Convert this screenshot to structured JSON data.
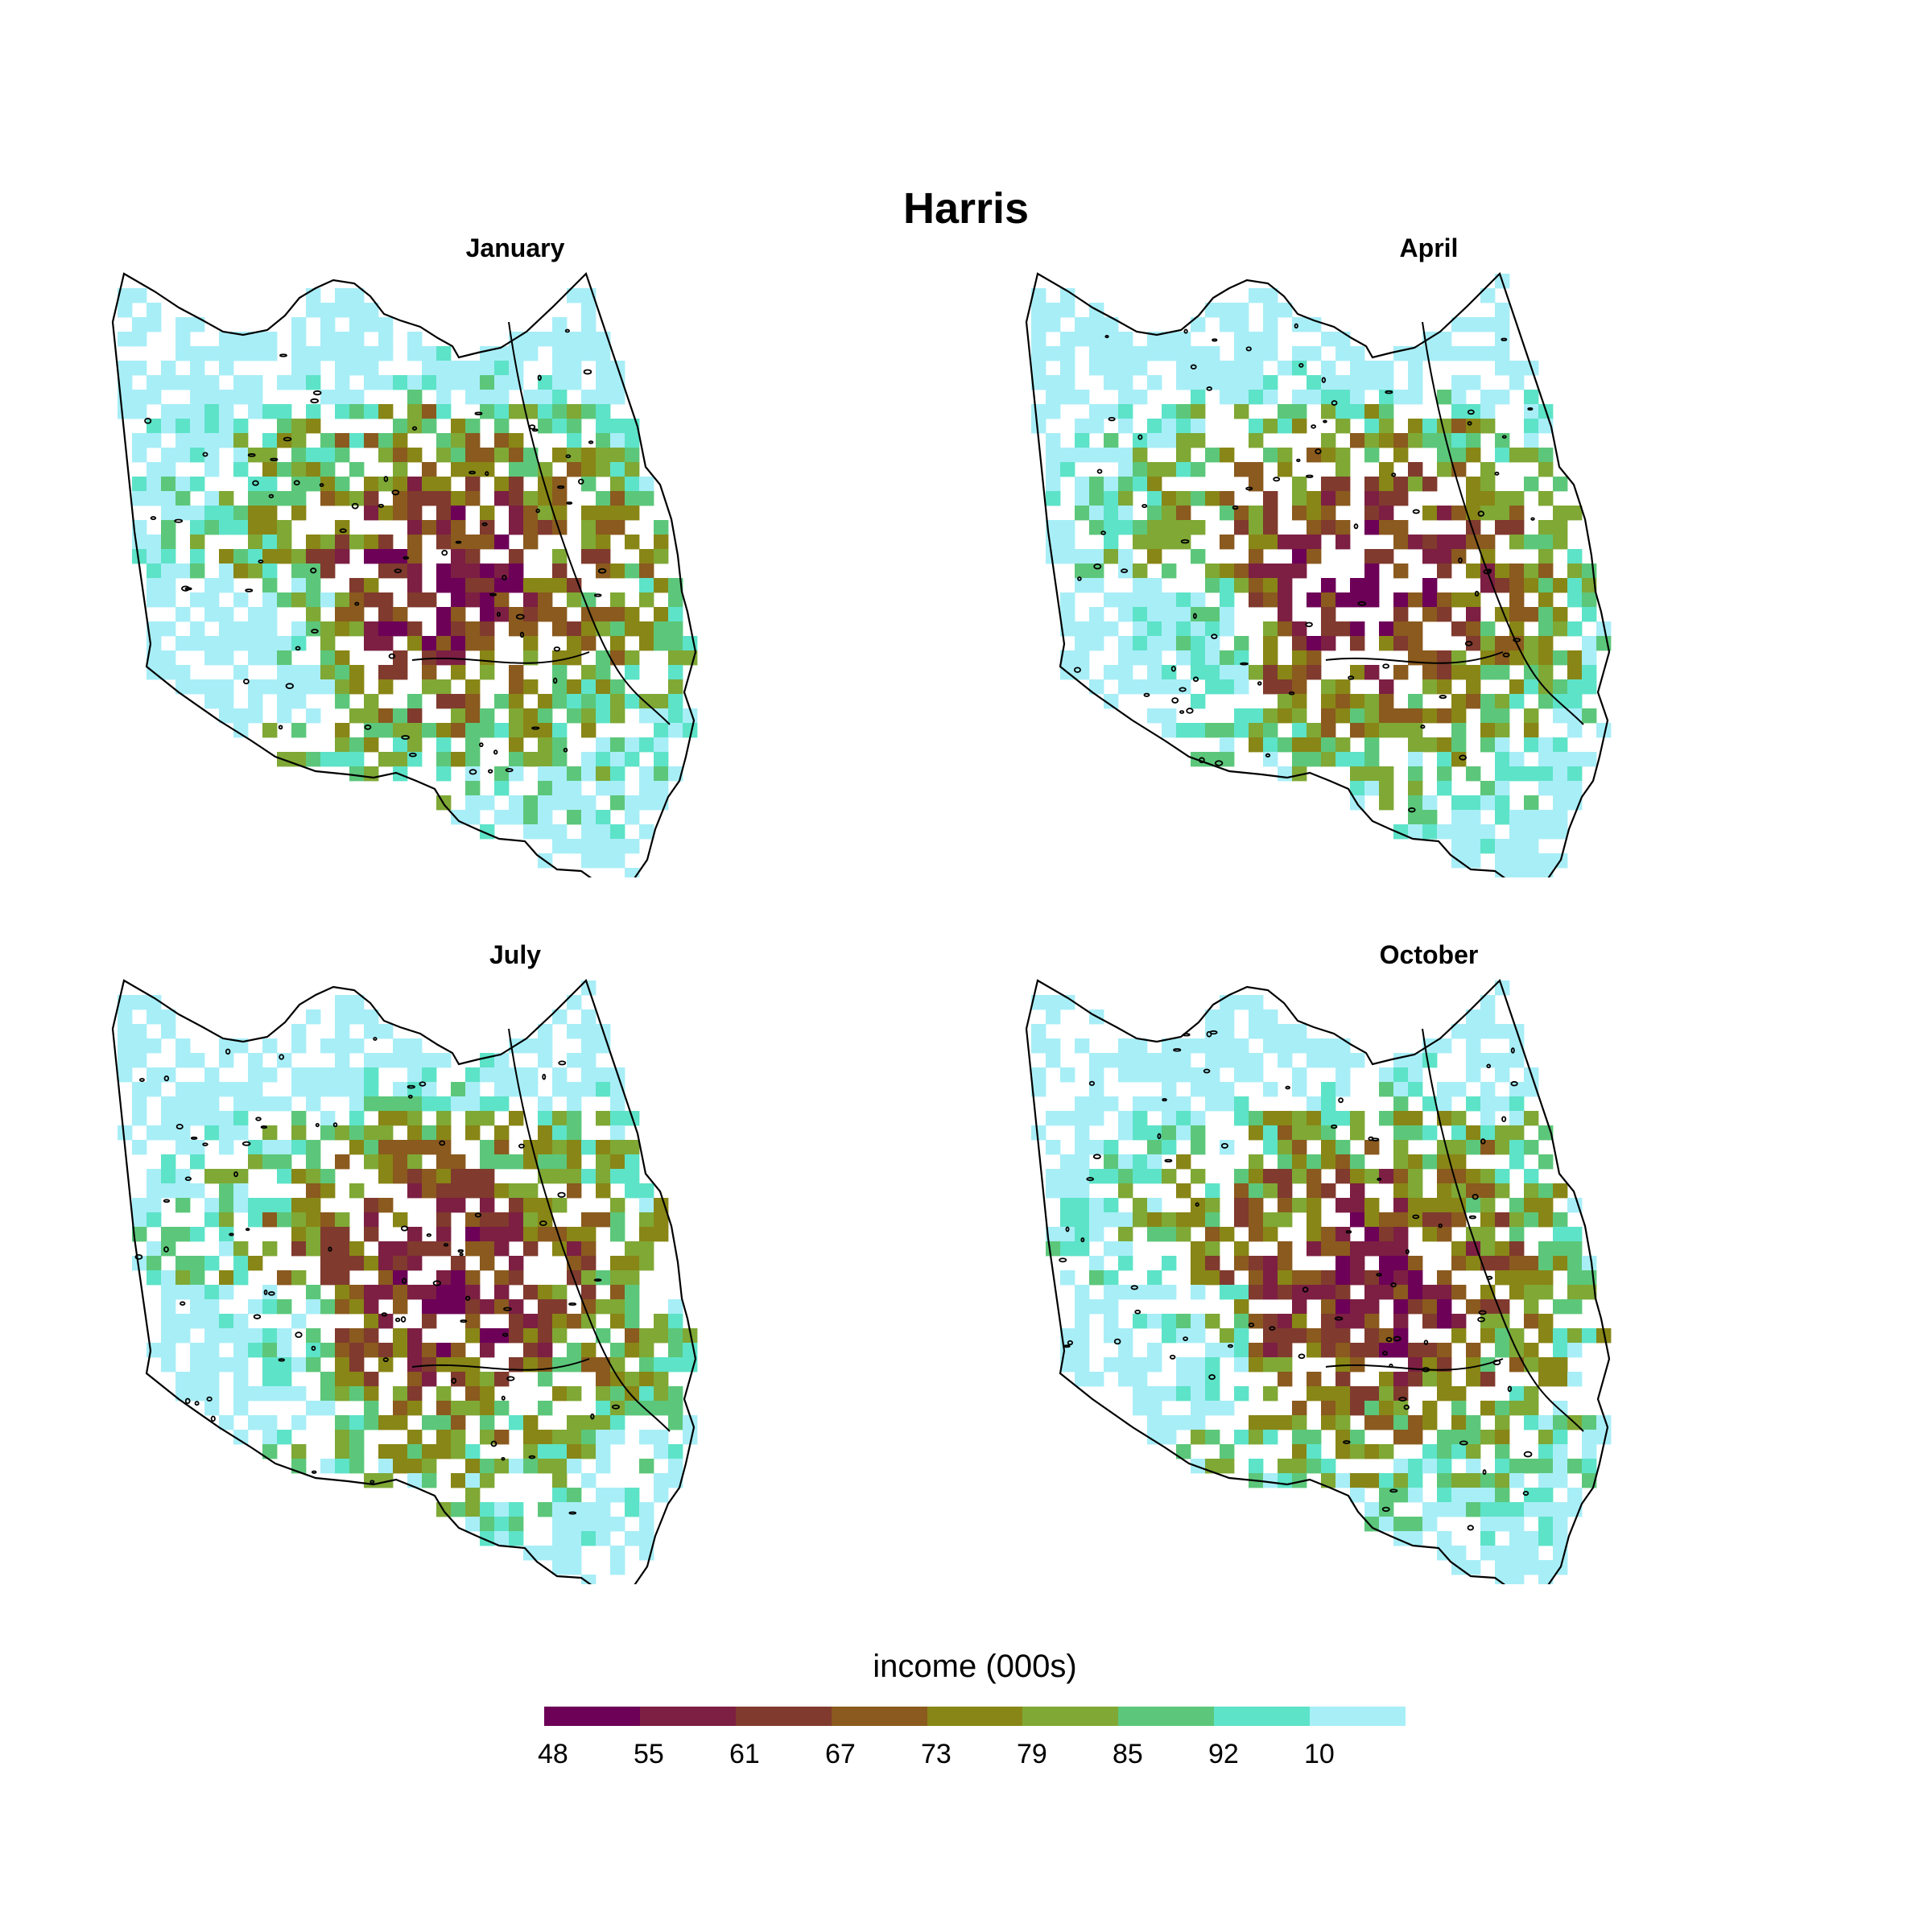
{
  "title": "Harris",
  "panels": [
    {
      "title": "January",
      "seed": 11
    },
    {
      "title": "April",
      "seed": 29
    },
    {
      "title": "July",
      "seed": 47
    },
    {
      "title": "October",
      "seed": 83
    }
  ],
  "legend": {
    "title": "income (000s)",
    "breaks": [
      "48",
      "55",
      "61",
      "67",
      "73",
      "79",
      "85",
      "92",
      "10"
    ],
    "colors": [
      "#6d0057",
      "#7c1f43",
      "#803a2e",
      "#8a5a1e",
      "#888616",
      "#7fa835",
      "#5cc77a",
      "#5de3c8",
      "#a8eef7"
    ]
  },
  "chart_data": {
    "type": "heatmap",
    "title": "Harris",
    "facets": [
      "January",
      "April",
      "July",
      "October"
    ],
    "legend_title": "income (000s)",
    "legend_placement": "bottom",
    "bins": [
      "48",
      "55",
      "61",
      "67",
      "73",
      "79",
      "85",
      "92",
      "10"
    ]
  }
}
